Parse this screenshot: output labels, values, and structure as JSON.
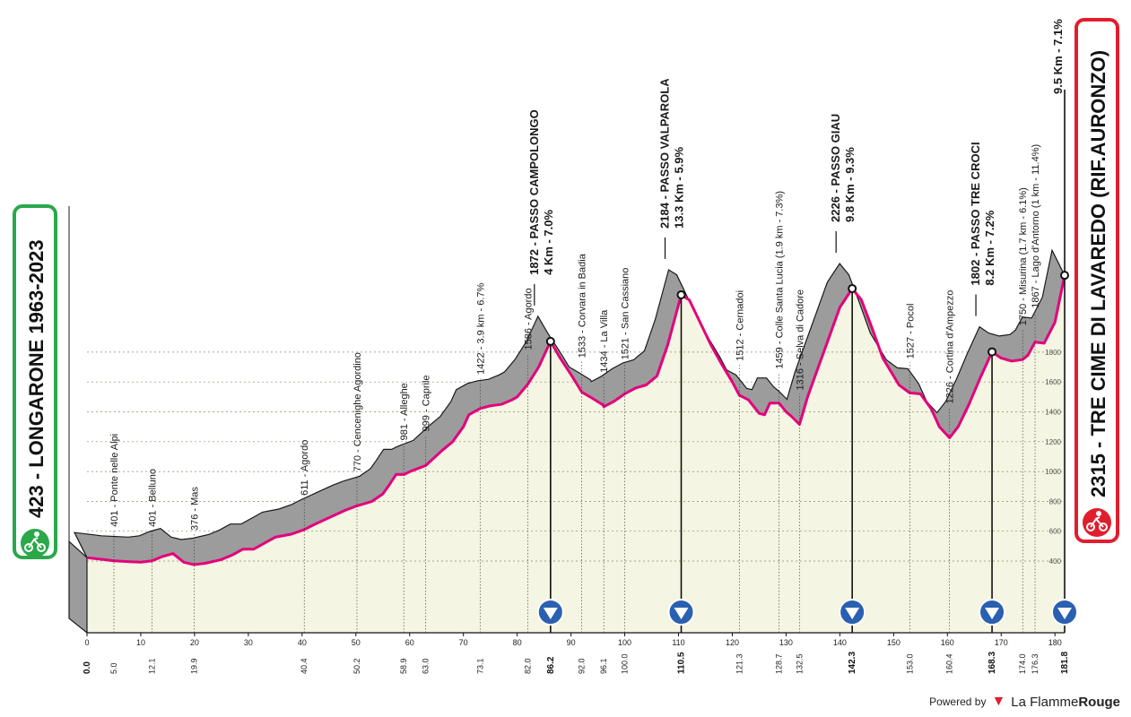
{
  "start": {
    "label": "423 - LONGARONE 1963-2023",
    "color": "#2aa84a"
  },
  "finish": {
    "label": "2315 - TRE CIME DI LAVAREDO (RIF.AURONZO)",
    "color": "#e01e2d",
    "last_climb": "9.5 Km - 7.1%"
  },
  "footer": {
    "powered": "Powered by",
    "brand_a": "La Flamme",
    "brand_b": "Rouge"
  },
  "chart_data": {
    "type": "area",
    "xlim": [
      0,
      182
    ],
    "ylim": [
      0,
      2400
    ],
    "x_ticks": [
      0,
      10,
      20,
      30,
      40,
      50,
      60,
      70,
      80,
      90,
      100,
      110,
      120,
      130,
      140,
      150,
      160,
      170,
      180
    ],
    "y_ticks": [
      400,
      600,
      800,
      1000,
      1200,
      1400,
      1600,
      1800
    ],
    "profile": [
      [
        0,
        423
      ],
      [
        3,
        410
      ],
      [
        5,
        401
      ],
      [
        8,
        396
      ],
      [
        10,
        392
      ],
      [
        12.1,
        401
      ],
      [
        14,
        430
      ],
      [
        16,
        450
      ],
      [
        18,
        392
      ],
      [
        19.9,
        376
      ],
      [
        22,
        385
      ],
      [
        25,
        410
      ],
      [
        27,
        440
      ],
      [
        29,
        480
      ],
      [
        31,
        480
      ],
      [
        33,
        520
      ],
      [
        35,
        560
      ],
      [
        38,
        580
      ],
      [
        40.4,
        611
      ],
      [
        42,
        640
      ],
      [
        45,
        690
      ],
      [
        48,
        740
      ],
      [
        50.2,
        770
      ],
      [
        53,
        800
      ],
      [
        55,
        850
      ],
      [
        56,
        900
      ],
      [
        57.5,
        981
      ],
      [
        59,
        980
      ],
      [
        60,
        999
      ],
      [
        63,
        1040
      ],
      [
        66,
        1140
      ],
      [
        68,
        1200
      ],
      [
        70,
        1300
      ],
      [
        71,
        1380
      ],
      [
        73.1,
        1422
      ],
      [
        75,
        1440
      ],
      [
        77,
        1450
      ],
      [
        79,
        1480
      ],
      [
        80,
        1500
      ],
      [
        82,
        1586
      ],
      [
        84,
        1700
      ],
      [
        86.2,
        1872
      ],
      [
        88,
        1760
      ],
      [
        90,
        1650
      ],
      [
        92,
        1533
      ],
      [
        94,
        1490
      ],
      [
        96,
        1445
      ],
      [
        96.1,
        1434
      ],
      [
        98,
        1470
      ],
      [
        100,
        1521
      ],
      [
        102,
        1560
      ],
      [
        104,
        1580
      ],
      [
        106,
        1640
      ],
      [
        108,
        1850
      ],
      [
        110.5,
        2184
      ],
      [
        112,
        2150
      ],
      [
        114,
        2000
      ],
      [
        116,
        1850
      ],
      [
        118,
        1720
      ],
      [
        120,
        1600
      ],
      [
        121.3,
        1512
      ],
      [
        123,
        1480
      ],
      [
        125,
        1390
      ],
      [
        126,
        1380
      ],
      [
        127,
        1459
      ],
      [
        128.7,
        1459
      ],
      [
        130,
        1400
      ],
      [
        131,
        1370
      ],
      [
        132.5,
        1316
      ],
      [
        134,
        1500
      ],
      [
        136,
        1700
      ],
      [
        138,
        1900
      ],
      [
        140,
        2100
      ],
      [
        142.3,
        2226
      ],
      [
        144,
        2150
      ],
      [
        146,
        1960
      ],
      [
        148,
        1760
      ],
      [
        150,
        1640
      ],
      [
        151,
        1580
      ],
      [
        153,
        1527
      ],
      [
        155,
        1520
      ],
      [
        157,
        1420
      ],
      [
        158.5,
        1300
      ],
      [
        160.4,
        1226
      ],
      [
        162,
        1300
      ],
      [
        164,
        1450
      ],
      [
        166,
        1620
      ],
      [
        168.3,
        1802
      ],
      [
        170,
        1760
      ],
      [
        172,
        1740
      ],
      [
        174,
        1750
      ],
      [
        175,
        1780
      ],
      [
        176.3,
        1867
      ],
      [
        178,
        1860
      ],
      [
        180,
        2000
      ],
      [
        181.8,
        2315
      ]
    ],
    "towns": [
      {
        "name": "Ponte nelle Alpi",
        "alt": "401",
        "km": 5.0
      },
      {
        "name": "Belluno",
        "alt": "401",
        "km": 12.1
      },
      {
        "name": "Mas",
        "alt": "376",
        "km": 19.9
      },
      {
        "name": "Agordo",
        "alt": "611",
        "km": 40.4
      },
      {
        "name": "Cencenighe Agordino",
        "alt": "770",
        "km": 50.2
      },
      {
        "name": "Alleghe",
        "alt": "981",
        "km": 58.9
      },
      {
        "name": "Caprile",
        "alt": "999",
        "km": 63.0
      },
      {
        "name": "3.9 km - 6.7%",
        "alt": "1422",
        "km": 73.1
      },
      {
        "name": "Agordo",
        "alt": "1586",
        "km": 82.0
      },
      {
        "name": "Corvara in Badia",
        "alt": "1533",
        "km": 92.0
      },
      {
        "name": "La Villa",
        "alt": "1434",
        "km": 96.1
      },
      {
        "name": "San Cassiano",
        "alt": "1521",
        "km": 100.0
      },
      {
        "name": "Cernadoi",
        "alt": "1512",
        "km": 121.3
      },
      {
        "name": "Colle Santa Lucia (1.9 km - 7.3%)",
        "alt": "1459",
        "km": 128.7
      },
      {
        "name": "Selva di Cadore",
        "alt": "1316",
        "km": 132.5
      },
      {
        "name": "Pocol",
        "alt": "1527",
        "km": 153.0
      },
      {
        "name": "Cortina d'Ampezzo",
        "alt": "1226",
        "km": 160.4
      },
      {
        "name": "Misurina (1.7 km - 6.1%)",
        "alt": "1750",
        "km": 174.0
      },
      {
        "name": "Lago d'Antorno (1 km - 11.4%)",
        "alt": "1867",
        "km": 176.3
      }
    ],
    "climbs": [
      {
        "alt": "1872",
        "name": "PASSO CAMPOLONGO",
        "sub": "4 Km - 7.0%",
        "km": 86.2
      },
      {
        "alt": "2184",
        "name": "PASSO VALPAROLA",
        "sub": "13.3 Km - 5.9%",
        "km": 110.5
      },
      {
        "alt": "2226",
        "name": "PASSO GIAU",
        "sub": "9.8 Km - 9.3%",
        "km": 142.3
      },
      {
        "alt": "1802",
        "name": "PASSO TRE CROCI",
        "sub": "8.2 Km - 7.2%",
        "km": 168.3
      }
    ],
    "km_labels": [
      {
        "km": 0.0,
        "text": "0.0",
        "bold": true
      },
      {
        "km": 5.0,
        "text": "5.0"
      },
      {
        "km": 12.1,
        "text": "12.1"
      },
      {
        "km": 19.9,
        "text": "19.9"
      },
      {
        "km": 40.4,
        "text": "40.4"
      },
      {
        "km": 50.2,
        "text": "50.2"
      },
      {
        "km": 58.9,
        "text": "58.9"
      },
      {
        "km": 63.0,
        "text": "63.0"
      },
      {
        "km": 73.1,
        "text": "73.1"
      },
      {
        "km": 82.0,
        "text": "82.0"
      },
      {
        "km": 86.2,
        "text": "86.2",
        "bold": true
      },
      {
        "km": 92.0,
        "text": "92.0"
      },
      {
        "km": 96.1,
        "text": "96.1"
      },
      {
        "km": 100.0,
        "text": "100.0"
      },
      {
        "km": 110.5,
        "text": "110.5",
        "bold": true
      },
      {
        "km": 121.3,
        "text": "121.3"
      },
      {
        "km": 128.7,
        "text": "128.7"
      },
      {
        "km": 132.5,
        "text": "132.5"
      },
      {
        "km": 142.3,
        "text": "142.3",
        "bold": true
      },
      {
        "km": 153.0,
        "text": "153.0"
      },
      {
        "km": 160.4,
        "text": "160.4"
      },
      {
        "km": 168.3,
        "text": "168.3",
        "bold": true
      },
      {
        "km": 174.0,
        "text": "174.0"
      },
      {
        "km": 176.3,
        "text": "176.3"
      },
      {
        "km": 181.8,
        "text": "181.8",
        "bold": true
      }
    ],
    "kom_markers_km": [
      86.2,
      110.5,
      142.3,
      168.3,
      181.8
    ],
    "colors": {
      "fill": "#f4f5e2",
      "relief": "#9c9c9c",
      "line": "#e4007c",
      "kom": "#2a60b0"
    },
    "grid": true
  }
}
